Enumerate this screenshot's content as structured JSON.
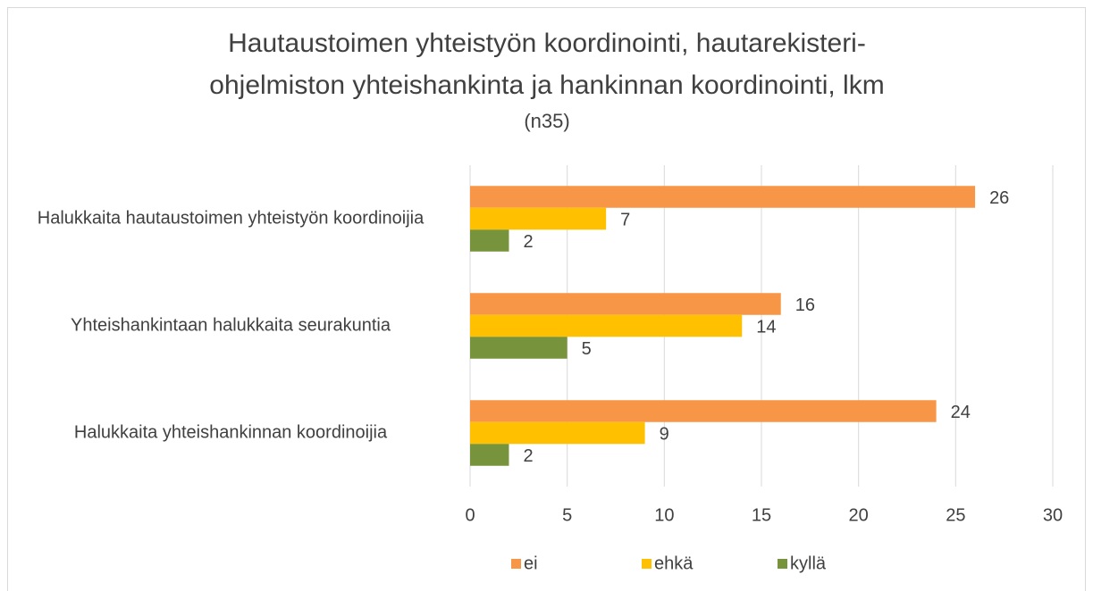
{
  "chart_data": {
    "type": "hbar",
    "title": [
      "Hautaustoimen yhteistyön koordinointi, hautarekisteri-",
      "ohjelmiston yhteishankinta ja hankinnan koordinointi, lkm"
    ],
    "subtitle": "(n35)",
    "categories": [
      "Halukkaita hautaustoimen yhteistyön koordinoijia",
      "Yhteishankintaan halukkaita seurakuntia",
      "Halukkaita yhteishankinnan koordinoijia"
    ],
    "series": [
      {
        "name": "ei",
        "color": "#F79646",
        "values": [
          26,
          16,
          24
        ]
      },
      {
        "name": "ehkä",
        "color": "#FFC000",
        "values": [
          7,
          14,
          9
        ]
      },
      {
        "name": "kyllä",
        "color": "#77933C",
        "values": [
          2,
          5,
          2
        ]
      }
    ],
    "xlim": [
      0,
      30
    ],
    "xticks": [
      0,
      5,
      10,
      15,
      20,
      25,
      30
    ],
    "grid": true,
    "legend": "bottom"
  }
}
